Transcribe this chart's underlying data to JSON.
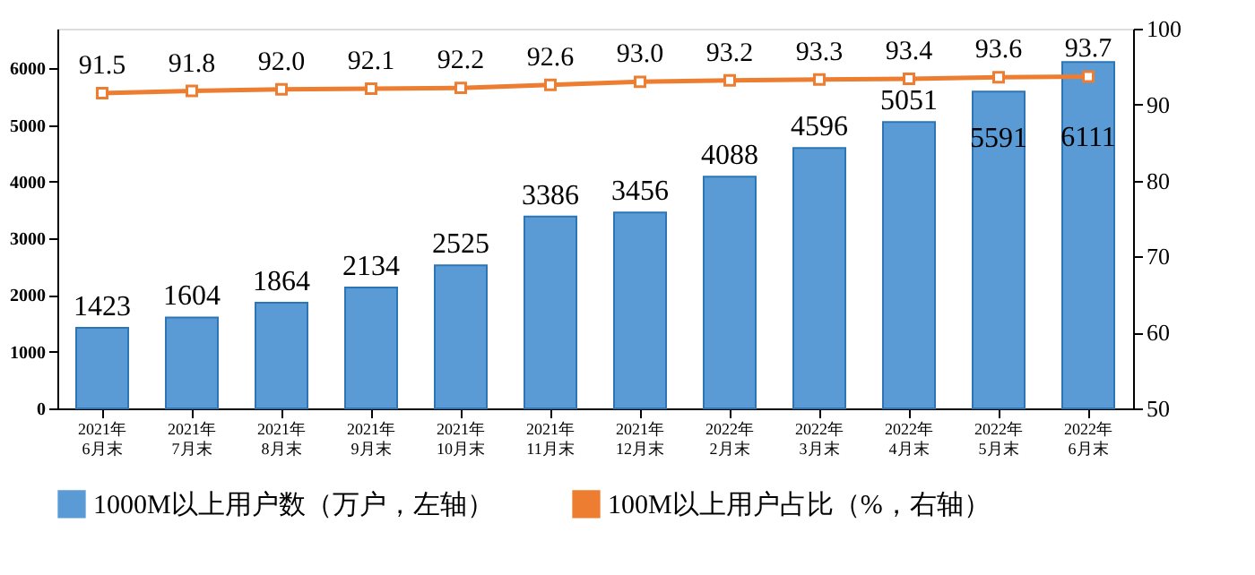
{
  "chart_data": {
    "type": "bar",
    "categories": [
      "2021年\n6月末",
      "2021年\n7月末",
      "2021年\n8月末",
      "2021年\n9月末",
      "2021年\n10月末",
      "2021年\n11月末",
      "2021年\n12月末",
      "2022年\n2月末",
      "2022年\n3月末",
      "2022年\n4月末",
      "2022年\n5月末",
      "2022年\n6月末"
    ],
    "series": [
      {
        "name": "1000M以上用户数（万户，左轴）",
        "type": "bar",
        "color": "#5b9bd5",
        "values": [
          1423,
          1604,
          1864,
          2134,
          2525,
          3386,
          3456,
          4088,
          4596,
          5051,
          5591,
          6111
        ]
      },
      {
        "name": "100M以上用户占比（%，右轴）",
        "type": "line",
        "axis": "y2",
        "color": "#ed7d31",
        "marker": "square",
        "values": [
          91.5,
          91.8,
          92.0,
          92.1,
          92.2,
          92.6,
          93.0,
          93.2,
          93.3,
          93.4,
          93.6,
          93.7
        ],
        "value_labels": [
          "91.5",
          "91.8",
          "92.0",
          "92.1",
          "92.2",
          "92.6",
          "93.0",
          "93.2",
          "93.3",
          "93.4",
          "93.6",
          "93.7"
        ]
      }
    ],
    "ylim": [
      0,
      6700
    ],
    "yticks": [
      0,
      1000,
      2000,
      3000,
      4000,
      5000,
      6000
    ],
    "y2lim": [
      50,
      100
    ],
    "y2ticks": [
      50,
      60,
      70,
      80,
      90,
      100
    ],
    "data_labels": true,
    "grid": false,
    "legend": "bottom"
  }
}
